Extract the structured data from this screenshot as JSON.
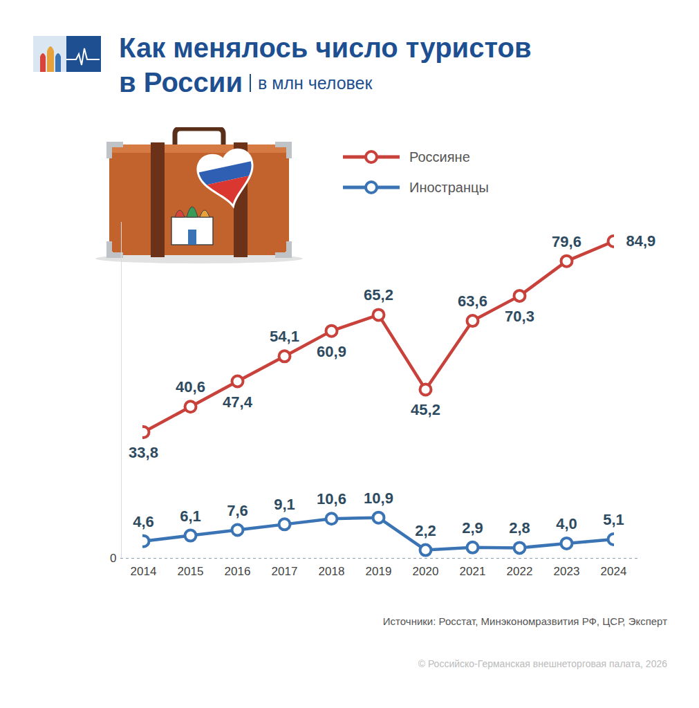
{
  "chart_data": {
    "type": "line",
    "title": "Как менялось число туристов в России",
    "subtitle": "в млн человек",
    "source": "Источники: Росстат, Минэкономразвития РФ, ЦСР, Эксперт",
    "footer": "© Российско-Германская внешнеторговая палата, 2026",
    "categories": [
      "2014",
      "2015",
      "2016",
      "2017",
      "2018",
      "2019",
      "2020",
      "2021",
      "2022",
      "2023",
      "2024"
    ],
    "series": [
      {
        "name": "Россияне",
        "color": "#c8413b",
        "values": [
          33.8,
          40.6,
          47.4,
          54.1,
          60.9,
          65.2,
          45.2,
          63.6,
          70.3,
          79.6,
          84.9
        ],
        "value_labels": [
          "33,8",
          "40,6",
          "47,4",
          "54,1",
          "60,9",
          "65,2",
          "45,2",
          "63,6",
          "70,3",
          "79,6",
          "84,9"
        ]
      },
      {
        "name": "Иностранцы",
        "color": "#3a74b5",
        "values": [
          4.6,
          6.1,
          7.6,
          9.1,
          10.6,
          10.9,
          2.2,
          2.9,
          2.8,
          4.0,
          5.1
        ],
        "value_labels": [
          "4,6",
          "6,1",
          "7,6",
          "9,1",
          "10,6",
          "10,9",
          "2,2",
          "2,9",
          "2,8",
          "4,0",
          "5,1"
        ]
      }
    ],
    "ylim": [
      0,
      90
    ],
    "yticks": [
      0
    ],
    "grid": true,
    "legend": "top",
    "data_labels": true,
    "marker": "circle",
    "line_style": "solid"
  }
}
